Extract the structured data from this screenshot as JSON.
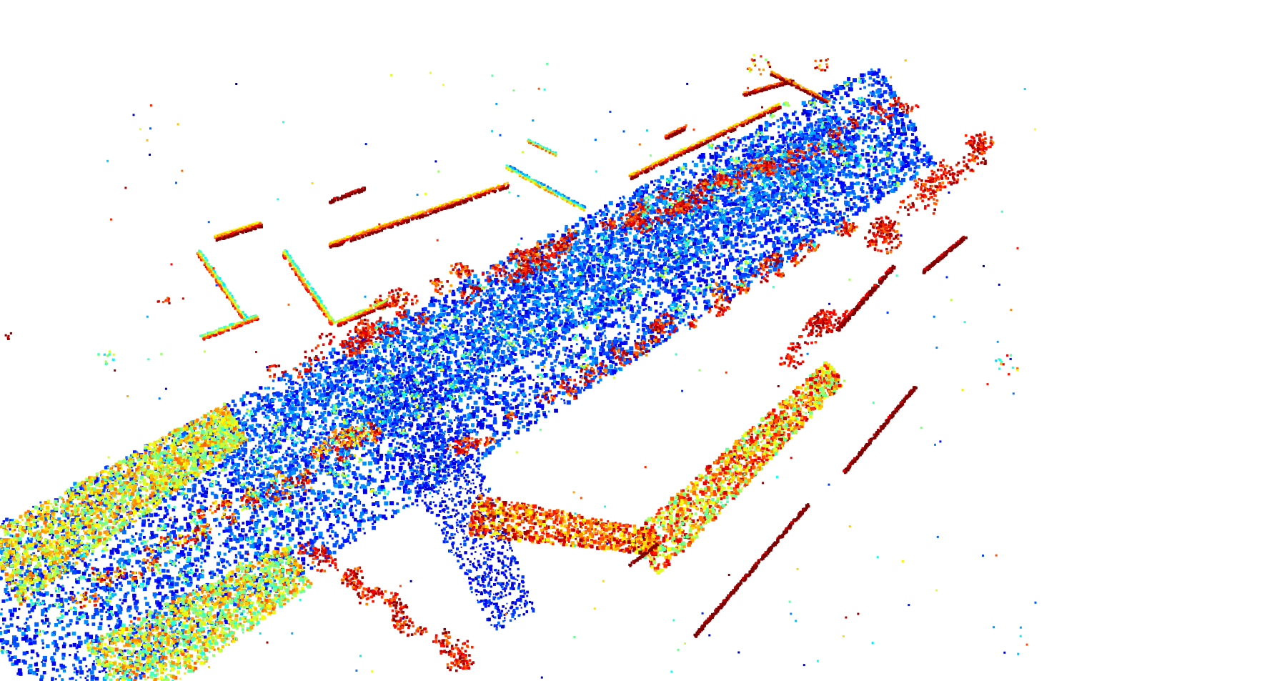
{
  "scene": {
    "kind": "lidar-point-cloud",
    "colormap": "jet",
    "colormap_encodes": "height",
    "background": "#ffffff",
    "jet_stops": [
      "#00007f",
      "#0000ff",
      "#0080ff",
      "#00ffff",
      "#80ff80",
      "#ffff00",
      "#ff8000",
      "#ff0000",
      "#7f0000"
    ]
  }
}
